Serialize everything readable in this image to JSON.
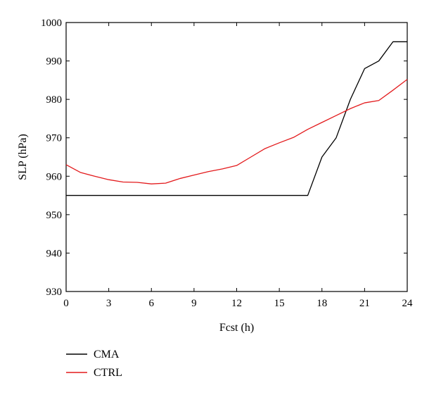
{
  "chart_data": {
    "type": "line",
    "xlabel": "Fcst (h)",
    "ylabel": "SLP (hPa)",
    "xlim": [
      0,
      24
    ],
    "ylim": [
      930,
      1000
    ],
    "xticks": [
      0,
      3,
      6,
      9,
      12,
      15,
      18,
      21,
      24
    ],
    "yticks": [
      930,
      940,
      950,
      960,
      970,
      980,
      990,
      1000
    ],
    "grid": false,
    "legend_position": "bottom-left",
    "series": [
      {
        "name": "CMA",
        "color": "#000000",
        "x": [
          0,
          17,
          18,
          19,
          20,
          21,
          22,
          23,
          24
        ],
        "y": [
          955,
          955,
          965,
          970,
          980,
          988,
          990,
          995,
          995
        ]
      },
      {
        "name": "CTRL",
        "color": "#e31a1c",
        "x": [
          0,
          1,
          2,
          3,
          4,
          5,
          6,
          7,
          8,
          9,
          10,
          11,
          12,
          13,
          14,
          15,
          16,
          17,
          18,
          19,
          20,
          21,
          22,
          23,
          24
        ],
        "y": [
          963,
          961,
          960,
          959.1,
          958.5,
          958.4,
          958,
          958.2,
          959.4,
          960.3,
          961.2,
          961.9,
          962.8,
          965,
          967.2,
          968.7,
          970.1,
          972.2,
          974,
          975.8,
          977.6,
          979.1,
          979.7,
          982.4,
          985.2
        ]
      }
    ]
  }
}
